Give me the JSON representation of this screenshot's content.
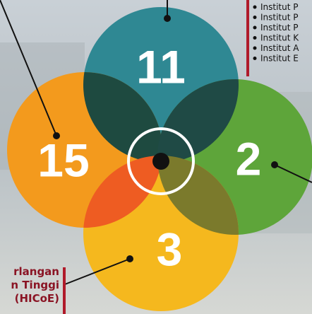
{
  "circles": [
    {
      "label": "11"
    },
    {
      "label": "15"
    },
    {
      "label": "2"
    },
    {
      "label": "3"
    }
  ],
  "list": [
    "Institut P",
    "Institut P",
    "Institut P",
    "Institut K",
    "Institut A",
    "Institut E"
  ],
  "caption": [
    "rlangan",
    "n Tinggi",
    "(HICoE)"
  ]
}
